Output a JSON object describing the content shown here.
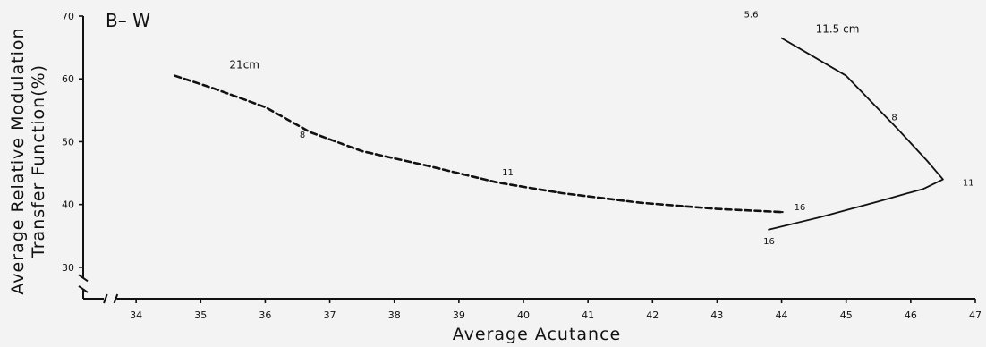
{
  "chart_data": {
    "type": "line",
    "title": "B– W",
    "xlabel": "Average  Acutance",
    "ylabel_lines": [
      "Average Relative Modulation",
      "Transfer Function(%)"
    ],
    "xlim": [
      33,
      47
    ],
    "ylim": [
      25,
      70
    ],
    "x_ticks": [
      "34",
      "35",
      "36",
      "37",
      "38",
      "39",
      "40",
      "41",
      "42",
      "43",
      "44",
      "45",
      "46",
      "47"
    ],
    "y_ticks": [
      "30",
      "40",
      "50",
      "60",
      "70"
    ],
    "series": [
      {
        "name": "21cm",
        "style": "dashed",
        "points": [
          [
            34.6,
            60.5
          ],
          [
            35.2,
            58.5
          ],
          [
            36.0,
            55.5
          ],
          [
            36.7,
            51.5
          ],
          [
            37.5,
            48.5
          ],
          [
            38.5,
            46.2
          ],
          [
            39.6,
            43.5
          ],
          [
            40.6,
            41.8
          ],
          [
            41.8,
            40.3
          ],
          [
            43.0,
            39.3
          ],
          [
            44.0,
            38.8
          ]
        ],
        "annotations": [
          {
            "text": "8",
            "x": 36.7,
            "y": 51.5
          },
          {
            "text": "11",
            "x": 39.6,
            "y": 43.5
          },
          {
            "text": "16",
            "x": 44.0,
            "y": 38.8
          }
        ]
      },
      {
        "name": "11.5 cm",
        "style": "solid",
        "points": [
          [
            44.0,
            66.5
          ],
          [
            45.0,
            60.5
          ],
          [
            45.8,
            52.0
          ],
          [
            46.25,
            47.0
          ],
          [
            46.5,
            44.0
          ],
          [
            46.2,
            42.5
          ],
          [
            45.5,
            40.5
          ],
          [
            44.6,
            38.0
          ],
          [
            43.8,
            36.0
          ]
        ],
        "annotations": [
          {
            "text": "5.6",
            "x": 44.0,
            "y": 66.5
          },
          {
            "text": "8",
            "x": 45.8,
            "y": 52.0
          },
          {
            "text": "11",
            "x": 46.5,
            "y": 44.0
          },
          {
            "text": "16",
            "x": 43.8,
            "y": 36.0
          }
        ]
      }
    ],
    "grid": false,
    "legend": "none"
  }
}
